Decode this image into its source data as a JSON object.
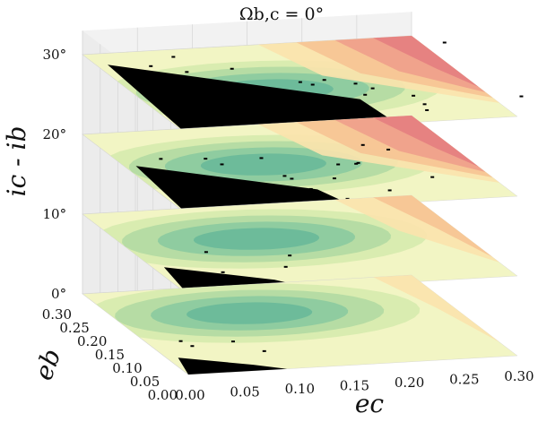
{
  "chart_data": {
    "type": "3d-stacked-contour",
    "title": "Ω_{b,c} = 0°",
    "title_display": "Ωb,c = 0°",
    "xlabel": "e_c",
    "xlabel_display": "ec",
    "ylabel": "e_b",
    "ylabel_display": "eb",
    "zlabel": "i_c - i_b",
    "zlabel_display": "ic - ib",
    "x_ticks": [
      "0.00",
      "0.05",
      "0.10",
      "0.15",
      "0.20",
      "0.25",
      "0.30"
    ],
    "y_ticks": [
      "0.00",
      "0.05",
      "0.10",
      "0.15",
      "0.20",
      "0.25",
      "0.30"
    ],
    "z_ticks": [
      "0°",
      "10°",
      "20°",
      "30°"
    ],
    "xlim": [
      0.0,
      0.3
    ],
    "ylim": [
      0.0,
      0.3
    ],
    "zlim": [
      0,
      30
    ],
    "layers": [
      {
        "inclination_deg": 0,
        "unstable_corner_extent": 0.06,
        "noise_points": 4
      },
      {
        "inclination_deg": 10,
        "unstable_corner_extent": 0.1,
        "noise_points": 5
      },
      {
        "inclination_deg": 20,
        "unstable_corner_extent": 0.18,
        "noise_points": 22
      },
      {
        "inclination_deg": 30,
        "unstable_corner_extent": 0.26,
        "noise_points": 20
      }
    ],
    "colormap": [
      "#6dbb9a",
      "#8fcca0",
      "#b6dca4",
      "#d9ecb0",
      "#f2f5c4",
      "#fbe3ad",
      "#f6c394",
      "#ee9f8b",
      "#e47e80"
    ],
    "unstable_color": "#000000",
    "grid": true
  }
}
